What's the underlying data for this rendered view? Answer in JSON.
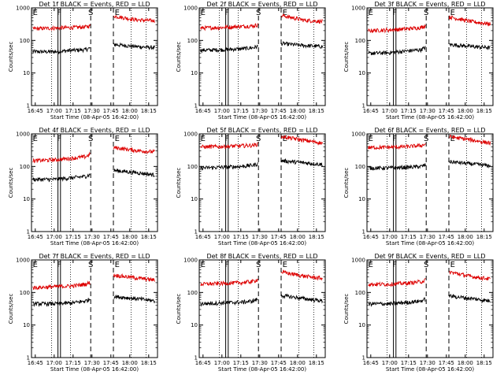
{
  "colors": {
    "background": "#ffffff",
    "events": "#000000",
    "lld": "#dd0000",
    "axes": "#000000"
  },
  "chart_data": [
    {
      "type": "line",
      "title": "Det 1f BLACK = Events, RED = LLD",
      "xlabel": "Start Time (08-Apr-05 16:42:00)",
      "ylabel": "Counts/sec",
      "yscale": "log",
      "ylim": [
        1,
        1000
      ],
      "xlim": [
        "16:42",
        "18:22"
      ],
      "xticks": [
        "16:45",
        "17:00",
        "17:15",
        "17:30",
        "17:45",
        "18:00",
        "18:15"
      ],
      "yticks": [
        "1",
        "10",
        "100",
        "1000"
      ],
      "markers": [
        {
          "label": "E",
          "time": "16:45"
        },
        {
          "label": "F",
          "time": "17:04"
        },
        {
          "label": "S",
          "time": "17:29"
        },
        {
          "label": "E",
          "time": "17:50"
        }
      ],
      "dashed_lines": [
        "17:29",
        "17:47"
      ],
      "solid_lines": [
        "17:03",
        "17:05"
      ],
      "dotted_lines": [
        "16:58",
        "17:13",
        "18:01",
        "18:13"
      ],
      "series": [
        {
          "name": "Events",
          "x": [
            "16:43",
            "17:00",
            "17:15",
            "17:25",
            "17:28",
            "17:48",
            "18:05",
            "18:20"
          ],
          "values": [
            45,
            45,
            50,
            52,
            58,
            75,
            65,
            60
          ]
        },
        {
          "name": "LLD",
          "x": [
            "16:43",
            "17:00",
            "17:15",
            "17:25",
            "17:28",
            "17:48",
            "18:05",
            "18:20"
          ],
          "values": [
            230,
            240,
            250,
            260,
            280,
            560,
            430,
            400
          ]
        }
      ]
    },
    {
      "type": "line",
      "title": "Det 2f BLACK = Events, RED = LLD",
      "xlabel": "Start Time (08-Apr-05 16:42:00)",
      "ylabel": "Counts/sec",
      "yscale": "log",
      "ylim": [
        1,
        1000
      ],
      "xlim": [
        "16:42",
        "18:22"
      ],
      "xticks": [
        "16:45",
        "17:00",
        "17:15",
        "17:30",
        "17:45",
        "18:00",
        "18:15"
      ],
      "yticks": [
        "1",
        "10",
        "100",
        "1000"
      ],
      "markers": [
        {
          "label": "E",
          "time": "16:45"
        },
        {
          "label": "F",
          "time": "17:04"
        },
        {
          "label": "S",
          "time": "17:29"
        },
        {
          "label": "E",
          "time": "17:50"
        }
      ],
      "dashed_lines": [
        "17:29",
        "17:47"
      ],
      "solid_lines": [
        "17:03",
        "17:05"
      ],
      "dotted_lines": [
        "16:58",
        "17:13",
        "18:01",
        "18:13"
      ],
      "series": [
        {
          "name": "Events",
          "x": [
            "16:43",
            "17:00",
            "17:15",
            "17:25",
            "17:28",
            "17:48",
            "18:05",
            "18:20"
          ],
          "values": [
            50,
            52,
            55,
            60,
            65,
            80,
            70,
            65
          ]
        },
        {
          "name": "LLD",
          "x": [
            "16:43",
            "17:00",
            "17:15",
            "17:25",
            "17:28",
            "17:48",
            "18:05",
            "18:20"
          ],
          "values": [
            240,
            250,
            270,
            280,
            300,
            580,
            420,
            380
          ]
        }
      ]
    },
    {
      "type": "line",
      "title": "Det 3f BLACK = Events, RED = LLD",
      "xlabel": "Start Time (08-Apr-05 16:42:00)",
      "ylabel": "Counts/sec",
      "yscale": "log",
      "ylim": [
        1,
        1000
      ],
      "xlim": [
        "16:42",
        "18:22"
      ],
      "xticks": [
        "16:45",
        "17:00",
        "17:15",
        "17:30",
        "17:45",
        "18:00",
        "18:15"
      ],
      "yticks": [
        "1",
        "10",
        "100",
        "1000"
      ],
      "markers": [
        {
          "label": "E",
          "time": "16:45"
        },
        {
          "label": "F",
          "time": "17:04"
        },
        {
          "label": "S",
          "time": "17:29"
        },
        {
          "label": "E",
          "time": "17:50"
        }
      ],
      "dashed_lines": [
        "17:29",
        "17:47"
      ],
      "solid_lines": [
        "17:03",
        "17:05"
      ],
      "dotted_lines": [
        "16:58",
        "17:13",
        "18:01",
        "18:13"
      ],
      "series": [
        {
          "name": "Events",
          "x": [
            "16:43",
            "17:00",
            "17:15",
            "17:25",
            "17:28",
            "17:48",
            "18:05",
            "18:20"
          ],
          "values": [
            40,
            42,
            48,
            52,
            60,
            75,
            65,
            60
          ]
        },
        {
          "name": "LLD",
          "x": [
            "16:43",
            "17:00",
            "17:15",
            "17:25",
            "17:28",
            "17:48",
            "18:05",
            "18:20"
          ],
          "values": [
            200,
            210,
            230,
            250,
            280,
            520,
            380,
            320
          ]
        }
      ]
    },
    {
      "type": "line",
      "title": "Det 4f BLACK = Events, RED = LLD",
      "xlabel": "Start Time (08-Apr-05 16:42:00)",
      "ylabel": "Counts/sec",
      "yscale": "log",
      "ylim": [
        1,
        1000
      ],
      "xlim": [
        "16:42",
        "18:22"
      ],
      "xticks": [
        "16:45",
        "17:00",
        "17:15",
        "17:30",
        "17:45",
        "18:00",
        "18:15"
      ],
      "yticks": [
        "1",
        "10",
        "100",
        "1000"
      ],
      "markers": [
        {
          "label": "E",
          "time": "16:45"
        },
        {
          "label": "F",
          "time": "17:04"
        },
        {
          "label": "S",
          "time": "17:29"
        },
        {
          "label": "E",
          "time": "17:50"
        }
      ],
      "dashed_lines": [
        "17:29",
        "17:47"
      ],
      "solid_lines": [
        "17:03",
        "17:05"
      ],
      "dotted_lines": [
        "16:58",
        "17:13",
        "18:01",
        "18:13"
      ],
      "series": [
        {
          "name": "Events",
          "x": [
            "16:43",
            "17:00",
            "17:15",
            "17:25",
            "17:28",
            "17:48",
            "18:05",
            "18:20"
          ],
          "values": [
            40,
            40,
            45,
            50,
            55,
            75,
            65,
            55
          ]
        },
        {
          "name": "LLD",
          "x": [
            "16:43",
            "17:00",
            "17:15",
            "17:25",
            "17:28",
            "17:48",
            "18:05",
            "18:20"
          ],
          "values": [
            150,
            160,
            180,
            200,
            230,
            380,
            310,
            280
          ]
        }
      ]
    },
    {
      "type": "line",
      "title": "Det 5f BLACK = Events, RED = LLD",
      "xlabel": "Start Time (08-Apr-05 16:42:00)",
      "ylabel": "Counts/sec",
      "yscale": "log",
      "ylim": [
        1,
        1000
      ],
      "xlim": [
        "16:42",
        "18:22"
      ],
      "xticks": [
        "16:45",
        "17:00",
        "17:15",
        "17:30",
        "17:45",
        "18:00",
        "18:15"
      ],
      "yticks": [
        "1",
        "10",
        "100",
        "1000"
      ],
      "markers": [
        {
          "label": "E",
          "time": "16:45"
        },
        {
          "label": "F",
          "time": "17:04"
        },
        {
          "label": "S",
          "time": "17:29"
        },
        {
          "label": "E",
          "time": "17:50"
        }
      ],
      "dashed_lines": [
        "17:29",
        "17:47"
      ],
      "solid_lines": [
        "17:03",
        "17:05"
      ],
      "dotted_lines": [
        "16:58",
        "17:13",
        "18:01",
        "18:13"
      ],
      "series": [
        {
          "name": "Events",
          "x": [
            "16:43",
            "17:00",
            "17:15",
            "17:25",
            "17:28",
            "17:48",
            "18:05",
            "18:20"
          ],
          "values": [
            90,
            95,
            100,
            110,
            120,
            150,
            130,
            115
          ]
        },
        {
          "name": "LLD",
          "x": [
            "16:43",
            "17:00",
            "17:15",
            "17:25",
            "17:28",
            "17:48",
            "18:05",
            "18:20"
          ],
          "values": [
            400,
            410,
            430,
            450,
            480,
            820,
            640,
            520
          ]
        }
      ]
    },
    {
      "type": "line",
      "title": "Det 6f BLACK = Events, RED = LLD",
      "xlabel": "Start Time (08-Apr-05 16:42:00)",
      "ylabel": "Counts/sec",
      "yscale": "log",
      "ylim": [
        1,
        1000
      ],
      "xlim": [
        "16:42",
        "18:22"
      ],
      "xticks": [
        "16:45",
        "17:00",
        "17:15",
        "17:30",
        "17:45",
        "18:00",
        "18:15"
      ],
      "yticks": [
        "1",
        "10",
        "100",
        "1000"
      ],
      "markers": [
        {
          "label": "E",
          "time": "16:45"
        },
        {
          "label": "F",
          "time": "17:04"
        },
        {
          "label": "S",
          "time": "17:29"
        },
        {
          "label": "E",
          "time": "17:50"
        }
      ],
      "dashed_lines": [
        "17:29",
        "17:47"
      ],
      "solid_lines": [
        "17:03",
        "17:05"
      ],
      "dotted_lines": [
        "16:58",
        "17:13",
        "18:01",
        "18:13"
      ],
      "series": [
        {
          "name": "Events",
          "x": [
            "16:43",
            "17:00",
            "17:15",
            "17:25",
            "17:28",
            "17:48",
            "18:05",
            "18:20"
          ],
          "values": [
            90,
            90,
            95,
            100,
            110,
            140,
            120,
            105
          ]
        },
        {
          "name": "LLD",
          "x": [
            "16:43",
            "17:00",
            "17:15",
            "17:25",
            "17:28",
            "17:48",
            "18:05",
            "18:20"
          ],
          "values": [
            380,
            390,
            410,
            440,
            480,
            820,
            650,
            520
          ]
        }
      ]
    },
    {
      "type": "line",
      "title": "Det 7f BLACK = Events, RED = LLD",
      "xlabel": "Start Time (08-Apr-05 16:42:00)",
      "ylabel": "Counts/sec",
      "yscale": "log",
      "ylim": [
        1,
        1000
      ],
      "xlim": [
        "16:42",
        "18:22"
      ],
      "xticks": [
        "16:45",
        "17:00",
        "17:15",
        "17:30",
        "17:45",
        "18:00",
        "18:15"
      ],
      "yticks": [
        "1",
        "10",
        "100",
        "1000"
      ],
      "markers": [
        {
          "label": "E",
          "time": "16:45"
        },
        {
          "label": "F",
          "time": "17:04"
        },
        {
          "label": "S",
          "time": "17:29"
        },
        {
          "label": "E",
          "time": "17:50"
        }
      ],
      "dashed_lines": [
        "17:29",
        "17:47"
      ],
      "solid_lines": [
        "17:03",
        "17:05"
      ],
      "dotted_lines": [
        "16:58",
        "17:13",
        "18:01",
        "18:13"
      ],
      "series": [
        {
          "name": "Events",
          "x": [
            "16:43",
            "17:00",
            "17:15",
            "17:25",
            "17:28",
            "17:48",
            "18:05",
            "18:20"
          ],
          "values": [
            45,
            45,
            48,
            55,
            62,
            75,
            65,
            55
          ]
        },
        {
          "name": "LLD",
          "x": [
            "16:43",
            "17:00",
            "17:15",
            "17:25",
            "17:28",
            "17:48",
            "18:05",
            "18:20"
          ],
          "values": [
            140,
            150,
            160,
            180,
            200,
            340,
            280,
            240
          ]
        }
      ]
    },
    {
      "type": "line",
      "title": "Det 8f BLACK = Events, RED = LLD",
      "xlabel": "Start Time (08-Apr-05 16:42:00)",
      "ylabel": "Counts/sec",
      "yscale": "log",
      "ylim": [
        1,
        1000
      ],
      "xlim": [
        "16:42",
        "18:22"
      ],
      "xticks": [
        "16:45",
        "17:00",
        "17:15",
        "17:30",
        "17:45",
        "18:00",
        "18:15"
      ],
      "yticks": [
        "1",
        "10",
        "100",
        "1000"
      ],
      "markers": [
        {
          "label": "E",
          "time": "16:45"
        },
        {
          "label": "F",
          "time": "17:04"
        },
        {
          "label": "S",
          "time": "17:29"
        },
        {
          "label": "E",
          "time": "17:50"
        }
      ],
      "dashed_lines": [
        "17:29",
        "17:47"
      ],
      "solid_lines": [
        "17:03",
        "17:05"
      ],
      "dotted_lines": [
        "16:58",
        "17:13",
        "18:01",
        "18:13"
      ],
      "series": [
        {
          "name": "Events",
          "x": [
            "16:43",
            "17:00",
            "17:15",
            "17:25",
            "17:28",
            "17:48",
            "18:05",
            "18:20"
          ],
          "values": [
            45,
            48,
            50,
            55,
            62,
            80,
            65,
            55
          ]
        },
        {
          "name": "LLD",
          "x": [
            "16:43",
            "17:00",
            "17:15",
            "17:25",
            "17:28",
            "17:48",
            "18:05",
            "18:20"
          ],
          "values": [
            180,
            190,
            200,
            220,
            250,
            420,
            320,
            270
          ]
        }
      ]
    },
    {
      "type": "line",
      "title": "Det 9f BLACK = Events, RED = LLD",
      "xlabel": "Start Time (08-Apr-05 16:42:00)",
      "ylabel": "Counts/sec",
      "yscale": "log",
      "ylim": [
        1,
        1000
      ],
      "xlim": [
        "16:42",
        "18:22"
      ],
      "xticks": [
        "16:45",
        "17:00",
        "17:15",
        "17:30",
        "17:45",
        "18:00",
        "18:15"
      ],
      "yticks": [
        "1",
        "10",
        "100",
        "1000"
      ],
      "markers": [
        {
          "label": "E",
          "time": "16:45"
        },
        {
          "label": "F",
          "time": "17:04"
        },
        {
          "label": "S",
          "time": "17:29"
        },
        {
          "label": "E",
          "time": "17:50"
        }
      ],
      "dashed_lines": [
        "17:29",
        "17:47"
      ],
      "solid_lines": [
        "17:03",
        "17:05"
      ],
      "dotted_lines": [
        "16:58",
        "17:13",
        "18:01",
        "18:13"
      ],
      "series": [
        {
          "name": "Events",
          "x": [
            "16:43",
            "17:00",
            "17:15",
            "17:25",
            "17:28",
            "17:48",
            "18:05",
            "18:20"
          ],
          "values": [
            45,
            45,
            50,
            55,
            62,
            78,
            65,
            55
          ]
        },
        {
          "name": "LLD",
          "x": [
            "16:43",
            "17:00",
            "17:15",
            "17:25",
            "17:28",
            "17:48",
            "18:05",
            "18:20"
          ],
          "values": [
            180,
            180,
            195,
            215,
            240,
            420,
            310,
            260
          ]
        }
      ]
    }
  ]
}
